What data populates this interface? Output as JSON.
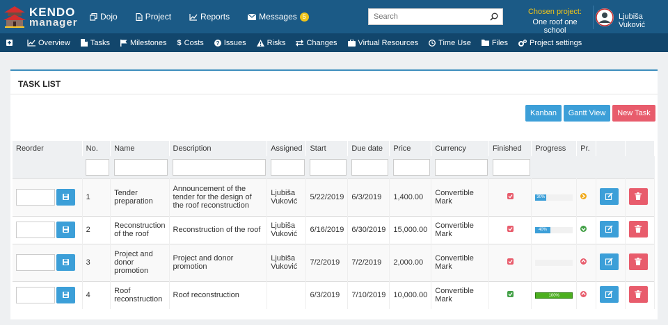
{
  "brand": {
    "line1": "KENDO",
    "line2": "manager"
  },
  "topnav": [
    {
      "label": "Dojo",
      "icon": "copy-icon"
    },
    {
      "label": "Project",
      "icon": "file-icon"
    },
    {
      "label": "Reports",
      "icon": "chart-icon"
    },
    {
      "label": "Messages",
      "icon": "envelope-icon",
      "badge": "5"
    }
  ],
  "search": {
    "placeholder": "Search"
  },
  "chosen_project": {
    "label": "Chosen project:",
    "name": "One roof one school"
  },
  "user": {
    "name": "Ljubiša Vuković"
  },
  "subnav": [
    {
      "label": "",
      "icon": "plus-icon"
    },
    {
      "label": "Overview",
      "icon": "line-chart-icon"
    },
    {
      "label": "Tasks",
      "icon": "tasks-icon"
    },
    {
      "label": "Milestones",
      "icon": "flag-icon"
    },
    {
      "label": "Costs",
      "icon": "dollar-icon"
    },
    {
      "label": "Issues",
      "icon": "question-icon"
    },
    {
      "label": "Risks",
      "icon": "warning-icon"
    },
    {
      "label": "Changes",
      "icon": "exchange-icon"
    },
    {
      "label": "Virtual Resources",
      "icon": "briefcase-icon"
    },
    {
      "label": "Time Use",
      "icon": "clock-icon"
    },
    {
      "label": "Files",
      "icon": "folder-icon"
    },
    {
      "label": "Project settings",
      "icon": "cogs-icon"
    }
  ],
  "panel": {
    "title": "TASK LIST"
  },
  "actions": {
    "kanban": "Kanban",
    "gantt": "Gantt View",
    "new_task": "New Task"
  },
  "columns": [
    "Reorder",
    "No.",
    "Name",
    "Description",
    "Assigned",
    "Start",
    "Due date",
    "Price",
    "Currency",
    "Finished",
    "Progress",
    "Pr.",
    "",
    ""
  ],
  "tasks": [
    {
      "no": "1",
      "name": "Tender preparation",
      "description": "Announcement of the tender for the design of the roof reconstruction",
      "assigned": "Ljubiša Vuković",
      "start": "5/22/2019",
      "due": "6/3/2019",
      "price": "1,400.00",
      "currency": "Convertible Mark",
      "finished": false,
      "progress": 30,
      "progress_label": "30%",
      "priority": "medium"
    },
    {
      "no": "2",
      "name": "Reconstruction of the roof",
      "description": "Reconstruction of the roof",
      "assigned": "Ljubiša Vuković",
      "start": "6/16/2019",
      "due": "6/30/2019",
      "price": "15,000.00",
      "currency": "Convertible Mark",
      "finished": false,
      "progress": 40,
      "progress_label": "40%",
      "priority": "low"
    },
    {
      "no": "3",
      "name": "Project and donor promotion",
      "description": "Project and donor promotion",
      "assigned": "Ljubiša Vuković",
      "start": "7/2/2019",
      "due": "7/2/2019",
      "price": "2,000.00",
      "currency": "Convertible Mark",
      "finished": false,
      "progress": 0,
      "progress_label": "",
      "priority": "high"
    },
    {
      "no": "4",
      "name": "Roof reconstruction",
      "description": "Roof reconstruction",
      "assigned": "",
      "start": "6/3/2019",
      "due": "7/10/2019",
      "price": "10,000.00",
      "currency": "Convertible Mark",
      "finished": true,
      "progress": 100,
      "progress_label": "100%",
      "priority": "high"
    }
  ],
  "colors": {
    "topbar": "#1b5a86",
    "subnav": "#12466c",
    "accent_yellow": "#f0c419",
    "button_blue": "#3c9fd8",
    "button_red": "#e85c6c",
    "finished_green": "#43a047",
    "unfinished_red": "#e85c6c",
    "progress_blue": "#3c9fd8",
    "progress_green": "#4caf1f",
    "priority_medium": "#f0a919",
    "priority_low": "#43a047",
    "priority_high": "#e85c6c"
  }
}
